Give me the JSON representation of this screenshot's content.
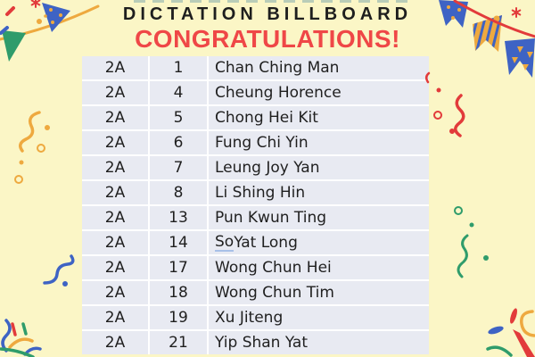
{
  "header": {
    "title": "DICTATION BILLBOARD",
    "subtitle": "CONGRATULATIONS!"
  },
  "table": {
    "rows": [
      {
        "class": "2A",
        "number": "1",
        "name": "Chan Ching Man"
      },
      {
        "class": "2A",
        "number": "4",
        "name": "Cheung Horence"
      },
      {
        "class": "2A",
        "number": "5",
        "name": "Chong Hei Kit"
      },
      {
        "class": "2A",
        "number": "6",
        "name": "Fung Chi Yin"
      },
      {
        "class": "2A",
        "number": "7",
        "name": "Leung Joy Yan"
      },
      {
        "class": "2A",
        "number": "8",
        "name": "Li Shing Hin"
      },
      {
        "class": "2A",
        "number": "13",
        "name": "Pun Kwun Ting"
      },
      {
        "class": "2A",
        "number": "14",
        "name": "So Yat Long",
        "underline_word": "So"
      },
      {
        "class": "2A",
        "number": "17",
        "name": "Wong Chun Hei"
      },
      {
        "class": "2A",
        "number": "18",
        "name": "Wong Chun Tim"
      },
      {
        "class": "2A",
        "number": "19",
        "name": "Xu Jiteng"
      },
      {
        "class": "2A",
        "number": "21",
        "name": "Yip Shan Yat"
      }
    ]
  },
  "decorations": {
    "icons": [
      "bunting-flags-left",
      "bunting-flags-right",
      "star-top-left",
      "star-top-right",
      "confetti-dash-red",
      "confetti-dash-blue",
      "squiggle-orange-left",
      "squiggle-red-right",
      "squiggle-blue-left",
      "squiggle-green-right",
      "firework-burst-bottom-left",
      "firework-burst-bottom-right"
    ]
  },
  "colors": {
    "background": "#FBF6C6",
    "table_cell": "#E8EAF2",
    "table_gap": "#FFFFFF",
    "title_black": "#1E1E1E",
    "congrats_red": "#EF4747",
    "string_red": "#E23B3B",
    "gold": "#EEA93F",
    "flag_blue": "#3E63C4",
    "flag_green": "#2F9C6B",
    "underline_blue": "#A8C0E8",
    "clipped_text_teal": "#A9C3B4"
  }
}
